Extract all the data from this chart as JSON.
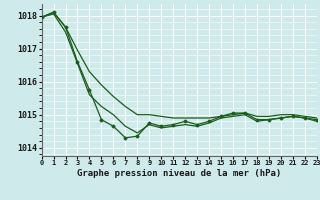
{
  "title": "Graphe pression niveau de la mer (hPa)",
  "bg_color": "#ceeaea",
  "grid_color": "#b8d8d8",
  "line_color": "#1a5c1a",
  "marker_color": "#1a5c1a",
  "xlim": [
    0,
    23
  ],
  "ylim": [
    1013.75,
    1018.35
  ],
  "yticks": [
    1014,
    1015,
    1016,
    1017,
    1018
  ],
  "xtick_labels": [
    "0",
    "1",
    "2",
    "3",
    "4",
    "5",
    "6",
    "7",
    "8",
    "9",
    "10",
    "11",
    "12",
    "13",
    "14",
    "15",
    "16",
    "17",
    "18",
    "19",
    "20",
    "21",
    "22",
    "23"
  ],
  "series1": [
    1017.95,
    1018.1,
    1017.65,
    1016.6,
    1015.75,
    1014.85,
    1014.65,
    1014.3,
    1014.35,
    1014.75,
    1014.65,
    1014.7,
    1014.8,
    1014.7,
    1014.8,
    1014.95,
    1015.05,
    1015.05,
    1014.85,
    1014.85,
    1014.9,
    1014.95,
    1014.9,
    1014.85
  ],
  "series2": [
    1017.95,
    1018.05,
    1017.5,
    1016.55,
    1015.6,
    1015.25,
    1015.0,
    1014.65,
    1014.45,
    1014.7,
    1014.6,
    1014.65,
    1014.7,
    1014.65,
    1014.75,
    1014.9,
    1014.95,
    1015.0,
    1014.8,
    1014.85,
    1014.9,
    1014.95,
    1014.9,
    1014.8
  ],
  "series3_upper": [
    1017.95,
    1018.1,
    1017.65,
    1016.95,
    1016.3,
    1015.9,
    1015.55,
    1015.25,
    1015.0,
    1015.0,
    1014.95,
    1014.9,
    1014.9,
    1014.9,
    1014.9,
    1014.95,
    1015.0,
    1015.05,
    1014.95,
    1014.95,
    1015.0,
    1015.0,
    1014.95,
    1014.9
  ]
}
